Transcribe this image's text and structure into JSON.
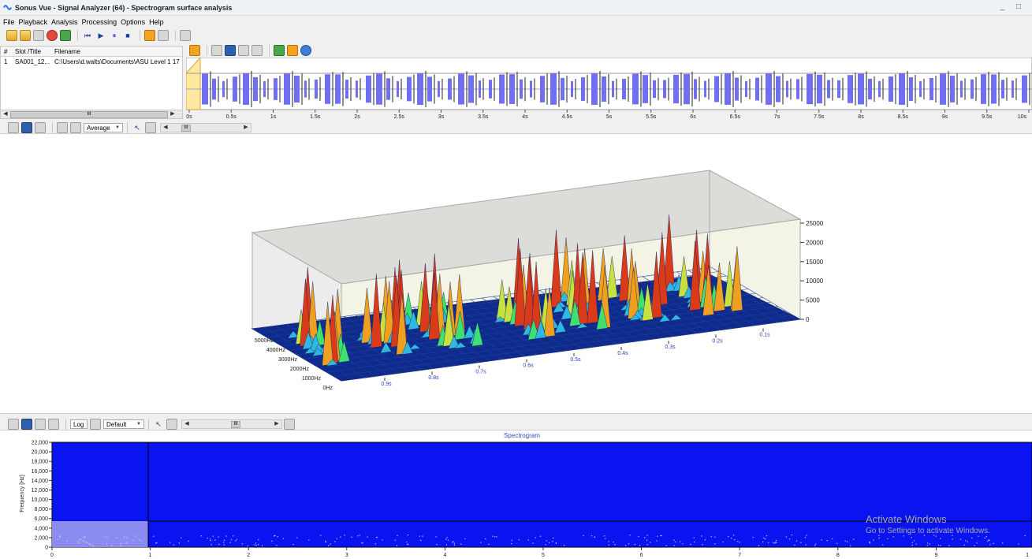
{
  "window": {
    "title": "Sonus Vue - Signal Analyzer (64) - Spectrogram surface analysis",
    "controls": "_ □"
  },
  "menu": [
    "File",
    "Playback",
    "Analysis",
    "Processing",
    "Options",
    "Help"
  ],
  "file_list": {
    "columns": [
      "#",
      "Slot /Title",
      "Filename"
    ],
    "rows": [
      {
        "num": "1",
        "slot": "SA001_12...",
        "filename": "C:\\Users\\d.walts\\Documents\\ASU Level 1 17"
      }
    ],
    "scroll_label": "III"
  },
  "waveform": {
    "ticks": [
      "0s",
      "0.5s",
      "1s",
      "1.5s",
      "2s",
      "2.5s",
      "3s",
      "3.5s",
      "4s",
      "4.5s",
      "5s",
      "5.5s",
      "6s",
      "6.5s",
      "7s",
      "7.5s",
      "8s",
      "8.5s",
      "9s",
      "9.5s",
      "10s"
    ],
    "color": "#6f6ff0"
  },
  "surface_toolbar": {
    "mode": "Average",
    "scroll_label": "III"
  },
  "surface_plot": {
    "z_ticks": [
      "25000",
      "20000",
      "15000",
      "10000",
      "5000",
      "0"
    ],
    "freq_ticks": [
      "5000Hz",
      "4000Hz",
      "3000Hz",
      "2000Hz",
      "1000Hz",
      "0Hz"
    ],
    "time_ticks": [
      "0.9s",
      "0.8s",
      "0.7s",
      "0.6s",
      "0.5s",
      "0.4s",
      "0.3s",
      "0.2s",
      "0.1s"
    ]
  },
  "spectrogram_toolbar": {
    "log_label": "Log",
    "palette": "Default",
    "scroll_label": "III"
  },
  "spectrogram": {
    "title": "Spectrogram",
    "ylabel": "Frequency [Hz]",
    "y_ticks": [
      "22,000",
      "20,000",
      "18,000",
      "16,000",
      "14,000",
      "12,000",
      "10,000",
      "8,000",
      "6,000",
      "4,000",
      "2,000",
      "0"
    ],
    "x_ticks": [
      "0",
      "1",
      "2",
      "3",
      "4",
      "5",
      "6",
      "7",
      "8",
      "9",
      "1"
    ],
    "fill_color": "#0a14f0",
    "selection_color": "#8c8cf0"
  },
  "watermark": {
    "line1": "Activate Windows",
    "line2": "Go to Settings to activate Windows."
  }
}
